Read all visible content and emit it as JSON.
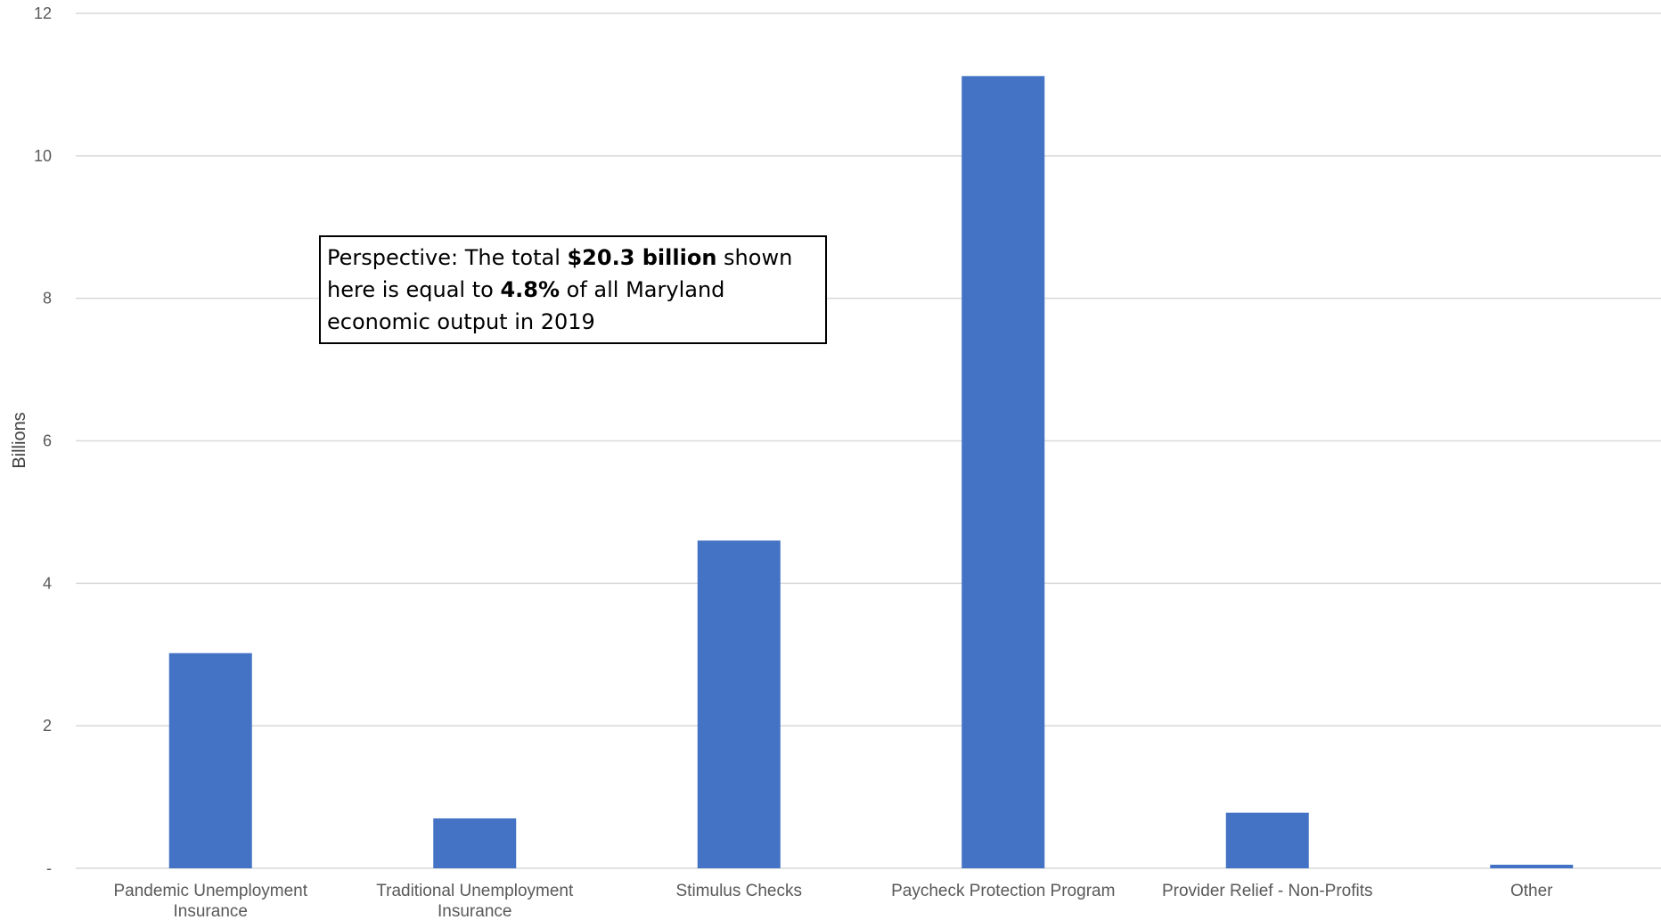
{
  "chart_data": {
    "type": "bar",
    "categories": [
      "Pandemic Unemployment Insurance",
      "Traditional Unemployment Insurance",
      "Stimulus Checks",
      "Paycheck Protection Program",
      "Provider Relief - Non-Profits",
      "Other"
    ],
    "category_lines": [
      [
        "Pandemic Unemployment",
        "Insurance"
      ],
      [
        "Traditional Unemployment",
        "Insurance"
      ],
      [
        "Stimulus Checks"
      ],
      [
        "Paycheck Protection Program"
      ],
      [
        "Provider Relief - Non-Profits"
      ],
      [
        "Other"
      ]
    ],
    "values": [
      3.02,
      0.7,
      4.6,
      11.12,
      0.78,
      0.05
    ],
    "title": "",
    "xlabel": "",
    "ylabel": "Billions",
    "ylim": [
      0,
      12
    ],
    "yticks": [
      0,
      2,
      4,
      6,
      8,
      10,
      12
    ],
    "ytick_labels": [
      "-",
      "2",
      "4",
      "6",
      "8",
      "10",
      "12"
    ],
    "grid": true,
    "legend": "none",
    "bar_color": "#4472C4",
    "grid_color": "#d9d9d9",
    "annotation": {
      "parts": [
        {
          "text": "Perspective: The total ",
          "bold": false
        },
        {
          "text": "$20.3 billion",
          "bold": true
        },
        {
          "text": " shown here is equal to ",
          "bold": false
        },
        {
          "text": "4.8%",
          "bold": true
        },
        {
          "text": " of all Maryland economic output in 2019",
          "bold": false
        }
      ]
    }
  }
}
